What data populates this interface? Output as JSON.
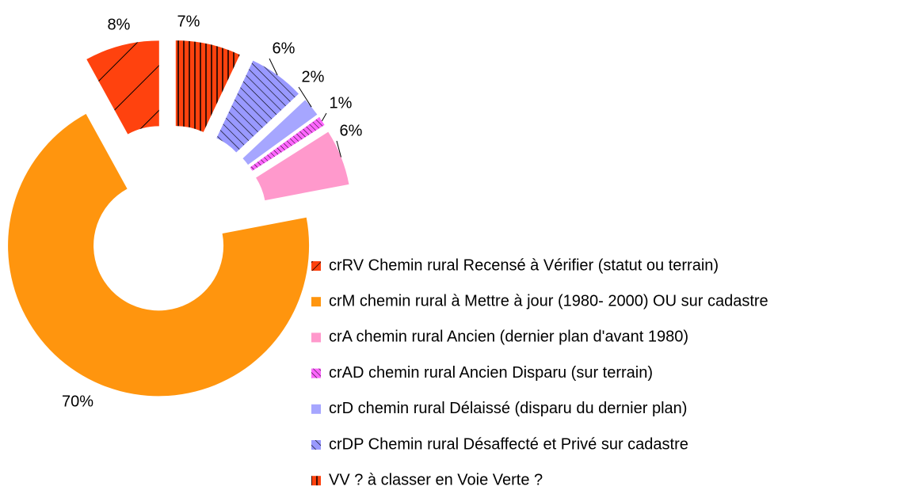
{
  "chart_data": {
    "type": "donut",
    "categories": [
      "crRV Chemin rural Recensé à Vérifier (statut ou terrain)",
      "crM chemin rural à Mettre à jour (1980- 2000) OU sur cadastre",
      "crA chemin rural Ancien (dernier plan d'avant 1980)",
      "crAD chemin rural Ancien Disparu (sur terrain)",
      "crD chemin rural Délaissé (disparu du dernier plan)",
      "crDP Chemin rural Désaffecté et Privé sur cadastre",
      "VV ? à classer en Voie Verte ?"
    ],
    "values": [
      8,
      70,
      6,
      1,
      2,
      6,
      7
    ],
    "value_labels": [
      "8%",
      "70%",
      "6%",
      "1%",
      "2%",
      "6%",
      "7%"
    ],
    "colors": [
      "#ff420e",
      "#ff950e",
      "#ff99cc",
      "#ff66ff",
      "#a6a6ff",
      "#9999ff",
      "#ff420e"
    ]
  }
}
